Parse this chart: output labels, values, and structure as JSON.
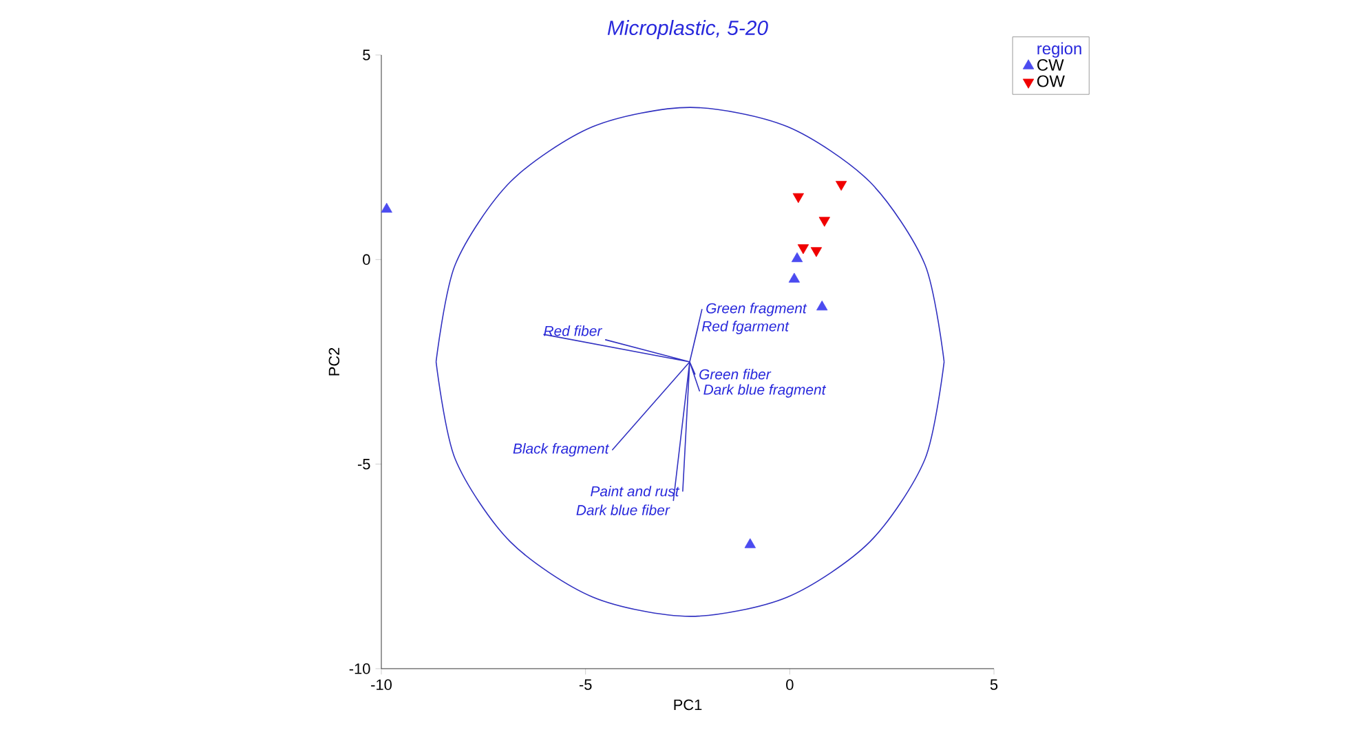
{
  "chart_data": {
    "type": "scatter",
    "title": "Microplastic, 5-20",
    "xlabel": "PC1",
    "ylabel": "PC2",
    "legend_title": "region",
    "legend": "top right",
    "xlim": [
      -10,
      5
    ],
    "ylim": [
      -10,
      5
    ],
    "xticks": [
      -10,
      -5,
      0,
      5
    ],
    "yticks": [
      -10,
      -5,
      0,
      5
    ],
    "grid": false,
    "series": [
      {
        "name": "CW",
        "color": "#4b4bf0",
        "marker": "triangle",
        "x": [
          -9.87,
          0.18,
          0.11,
          -0.97,
          0.79
        ],
        "values": [
          1.23,
          0.02,
          -0.48,
          -6.97,
          -1.16
        ]
      },
      {
        "name": "OW",
        "color": "#f00000",
        "marker": "triangle down",
        "x": [
          1.26,
          0.21,
          0.85,
          0.33,
          0.65
        ],
        "values": [
          1.84,
          1.54,
          0.96,
          0.29,
          0.22
        ]
      },
      {
        "type": "line",
        "color": "#3030c0",
        "x": [
          -8.66,
          -8.19,
          -6.84,
          -4.82,
          -2.44,
          -0.06,
          1.96,
          3.31,
          3.78
        ],
        "values": [
          -2.5,
          -0.12,
          1.9,
          3.25,
          3.72,
          3.25,
          1.9,
          -0.12,
          -2.5
        ]
      },
      {
        "type": "line",
        "color": "#3131c1",
        "x": [
          -8.66,
          -8.19,
          -6.84,
          -4.82,
          -2.44,
          -0.06,
          1.96,
          3.31,
          3.78
        ],
        "values": [
          -2.5,
          -4.88,
          -6.9,
          -8.25,
          -8.72,
          -8.25,
          -6.9,
          -4.88,
          -2.5
        ]
      },
      {
        "type": "line",
        "color": "#3232c2",
        "x": [
          -2.45,
          -6.02,
          -2.45,
          -4.51,
          -2.45,
          -2.15,
          -2.45,
          -2.25,
          -2.45,
          -2.32,
          -2.45,
          -2.21,
          -2.45,
          -4.34,
          -2.45,
          -2.62,
          -2.45,
          -2.85
        ],
        "values": [
          -2.5,
          -1.83,
          -2.5,
          -1.96,
          -2.5,
          -1.22,
          -2.5,
          -1.66,
          -2.5,
          -2.8,
          -2.5,
          -3.21,
          -2.5,
          -4.65,
          -2.5,
          -5.66,
          -2.5,
          -5.9
        ]
      }
    ],
    "annotations": [
      {
        "text": "Red fiber",
        "x": -4.51,
        "y": -1.96
      },
      {
        "text": "Green fragment",
        "x": -2.15,
        "y": -1.22
      },
      {
        "text": "Red fgarment",
        "x": -2.25,
        "y": -1.66
      },
      {
        "text": "Green fiber",
        "x": -2.32,
        "y": -2.8
      },
      {
        "text": "Dark blue fragment",
        "x": -2.21,
        "y": -3.21
      },
      {
        "text": "Black fragment",
        "x": -4.34,
        "y": -4.65
      },
      {
        "text": "Paint and rust",
        "x": -2.62,
        "y": -5.66
      },
      {
        "text": "Dark blue fiber",
        "x": -2.85,
        "y": -5.9
      }
    ]
  }
}
